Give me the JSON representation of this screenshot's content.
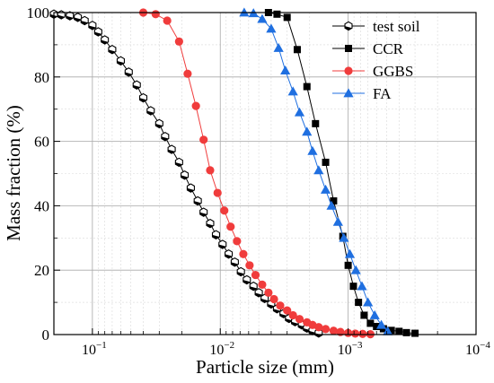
{
  "chart_data": {
    "type": "line",
    "title": "",
    "xlabel": "Particle size (mm)",
    "ylabel": "Mass fraction (%)",
    "x_scale": "log",
    "x_reversed": true,
    "xlim": [
      0.2,
      0.0001
    ],
    "ylim": [
      0,
      100
    ],
    "x_ticks": [
      {
        "value": 0.1,
        "base": "10",
        "exp": "−1"
      },
      {
        "value": 0.01,
        "base": "10",
        "exp": "−2"
      },
      {
        "value": 0.001,
        "base": "10",
        "exp": "−3"
      },
      {
        "value": 0.0001,
        "base": "10",
        "exp": "−4"
      }
    ],
    "y_ticks": [
      "0",
      "20",
      "40",
      "60",
      "80",
      "100"
    ],
    "grid": true,
    "legend_position": "top-right",
    "series": [
      {
        "name": "test soil",
        "color": "#000000",
        "marker": "hexagon-half-filled",
        "x": [
          0.2,
          0.175,
          0.15,
          0.13,
          0.115,
          0.1,
          0.09,
          0.08,
          0.07,
          0.06,
          0.052,
          0.045,
          0.04,
          0.035,
          0.03,
          0.027,
          0.024,
          0.021,
          0.019,
          0.017,
          0.015,
          0.0135,
          0.012,
          0.0108,
          0.0096,
          0.0086,
          0.0077,
          0.0069,
          0.0062,
          0.0055,
          0.005,
          0.0045,
          0.004,
          0.0036,
          0.0032,
          0.0029,
          0.0026,
          0.0023,
          0.0021,
          0.0019,
          0.0017
        ],
        "y": [
          99.5,
          99.3,
          99,
          98.5,
          97.5,
          96,
          94,
          91.5,
          88.5,
          85,
          81.5,
          77.5,
          73.5,
          69.5,
          65.5,
          61.5,
          57.5,
          53.5,
          49.5,
          45.5,
          41.5,
          38,
          34.5,
          31,
          28,
          25,
          22.5,
          19.5,
          17,
          15,
          13,
          11.2,
          9.5,
          8,
          6.5,
          5,
          4,
          3,
          2,
          1.2,
          0.5
        ]
      },
      {
        "name": "CCR",
        "color": "#000000",
        "marker": "square",
        "x": [
          0.0042,
          0.0036,
          0.003,
          0.0025,
          0.0021,
          0.0018,
          0.0015,
          0.0013,
          0.0011,
          0.001,
          0.00091,
          0.00083,
          0.00075,
          0.00067,
          0.0006,
          0.00053,
          0.00046,
          0.0004,
          0.00035,
          0.0003
        ],
        "y": [
          100,
          99.5,
          98.5,
          88.5,
          77,
          65.5,
          53.5,
          41.5,
          30.5,
          21.5,
          15,
          10,
          6,
          3.5,
          2.5,
          1.8,
          1.3,
          1,
          0.6,
          0.4
        ]
      },
      {
        "name": "GGBS",
        "color": "#f03c3c",
        "marker": "circle",
        "x": [
          0.04,
          0.032,
          0.026,
          0.021,
          0.018,
          0.0155,
          0.0135,
          0.012,
          0.0105,
          0.0093,
          0.0083,
          0.0074,
          0.0066,
          0.0059,
          0.0053,
          0.0047,
          0.0042,
          0.0038,
          0.0034,
          0.003,
          0.0027,
          0.0024,
          0.0021,
          0.0019,
          0.0017,
          0.0015,
          0.0013,
          0.00115,
          0.001,
          0.00088,
          0.00077,
          0.00067
        ],
        "y": [
          100,
          99.5,
          97.5,
          91,
          81,
          71,
          60.5,
          51,
          44,
          38.5,
          33.5,
          29,
          25,
          21.5,
          18.5,
          15.5,
          13,
          11,
          9,
          7.5,
          6,
          4.8,
          3.8,
          3,
          2.3,
          1.7,
          1.2,
          0.8,
          0.5,
          0.3,
          0.2,
          0.1
        ]
      },
      {
        "name": "FA",
        "color": "#1f6fe0",
        "marker": "triangle",
        "x": [
          0.0065,
          0.0055,
          0.0047,
          0.004,
          0.0035,
          0.0031,
          0.0027,
          0.0024,
          0.0021,
          0.0019,
          0.0017,
          0.0015,
          0.00135,
          0.0012,
          0.00108,
          0.00097,
          0.00087,
          0.00078,
          0.0007,
          0.00062,
          0.00055,
          0.00049
        ],
        "y": [
          100,
          99.8,
          98,
          95,
          89,
          82,
          75.5,
          69,
          63,
          57,
          51,
          45,
          40,
          35,
          30,
          25,
          20,
          15,
          10,
          6,
          3,
          1
        ]
      }
    ]
  }
}
